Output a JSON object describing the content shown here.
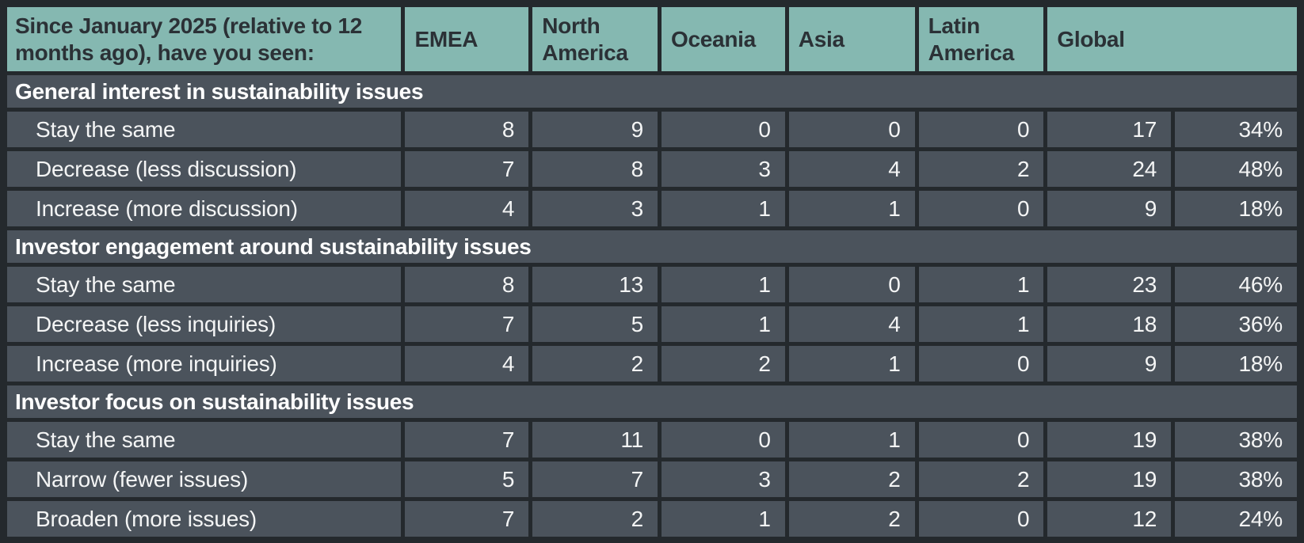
{
  "colors": {
    "header_bg": "#85b8b1",
    "header_text": "#2b3136",
    "row_bg": "#4b535c",
    "row_text": "#f4f5f5",
    "grid": "#24292d"
  },
  "chart_data": {
    "type": "table",
    "title": "Since January 2025 (relative to 12 months ago), have you seen:",
    "columns": [
      "EMEA",
      "North America",
      "Oceania",
      "Asia",
      "Latin America",
      "Global"
    ],
    "global_subcolumns": [
      "count",
      "percent"
    ],
    "sections": [
      {
        "title": "General interest in sustainability issues",
        "rows": [
          {
            "label": "Stay the same",
            "values": [
              8,
              9,
              0,
              0,
              0,
              17
            ],
            "pct": "34%"
          },
          {
            "label": "Decrease (less discussion)",
            "values": [
              7,
              8,
              3,
              4,
              2,
              24
            ],
            "pct": "48%"
          },
          {
            "label": "Increase (more discussion)",
            "values": [
              4,
              3,
              1,
              1,
              0,
              9
            ],
            "pct": "18%"
          }
        ]
      },
      {
        "title": "Investor engagement around sustainability issues",
        "rows": [
          {
            "label": "Stay the same",
            "values": [
              8,
              13,
              1,
              0,
              1,
              23
            ],
            "pct": "46%"
          },
          {
            "label": "Decrease (less inquiries)",
            "values": [
              7,
              5,
              1,
              4,
              1,
              18
            ],
            "pct": "36%"
          },
          {
            "label": "Increase (more inquiries)",
            "values": [
              4,
              2,
              2,
              1,
              0,
              9
            ],
            "pct": "18%"
          }
        ]
      },
      {
        "title": "Investor focus on sustainability issues",
        "rows": [
          {
            "label": "Stay the same",
            "values": [
              7,
              11,
              0,
              1,
              0,
              19
            ],
            "pct": "38%"
          },
          {
            "label": "Narrow (fewer issues)",
            "values": [
              5,
              7,
              3,
              2,
              2,
              19
            ],
            "pct": "38%"
          },
          {
            "label": "Broaden (more issues)",
            "values": [
              7,
              2,
              1,
              2,
              0,
              12
            ],
            "pct": "24%"
          }
        ]
      }
    ]
  }
}
